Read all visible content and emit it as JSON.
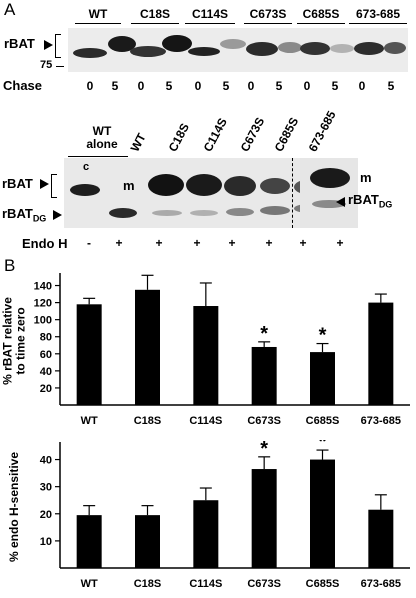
{
  "panel_a": {
    "letter": "A",
    "top_blot": {
      "row_label": "rBAT",
      "mw_marker": "75",
      "chase_label": "Chase",
      "groups": [
        {
          "name": "WT",
          "chase": [
            "0",
            "5"
          ]
        },
        {
          "name": "C18S",
          "chase": [
            "0",
            "5"
          ]
        },
        {
          "name": "C114S",
          "chase": [
            "0",
            "5"
          ]
        },
        {
          "name": "C673S",
          "chase": [
            "0",
            "5"
          ]
        },
        {
          "name": "C685S",
          "chase": [
            "0",
            "5"
          ]
        },
        {
          "name": "673-685",
          "chase": [
            "0",
            "5"
          ]
        }
      ]
    },
    "bottom_blot": {
      "wt_alone_label": "WT alone",
      "lane_labels": [
        "WT",
        "C18S",
        "C114S",
        "C673S",
        "C685S",
        "673-685"
      ],
      "row_label_top": "rBAT",
      "row_label_dg": "rBAT",
      "dg_subscript": "DG",
      "band_c": "c",
      "band_m_left": "m",
      "band_m_right": "m",
      "right_label": "rBAT",
      "endo_label": "Endo H",
      "endo_signs": [
        "-",
        "+",
        "+",
        "+",
        "+",
        "+",
        "+",
        "+"
      ]
    }
  },
  "panel_b": {
    "letter": "B",
    "chart_data": [
      {
        "type": "bar",
        "ylabel": "% rBAT relative to time zero",
        "ylabel_lines": [
          "% rBAT relative",
          "to time zero"
        ],
        "ylim": [
          0,
          150
        ],
        "yticks": [
          20,
          40,
          60,
          80,
          100,
          120,
          140
        ],
        "categories": [
          "WT",
          "C18S",
          "C114S",
          "C673S",
          "C685S",
          "673-685"
        ],
        "values": [
          118,
          135,
          116,
          68,
          62,
          120
        ],
        "errors": [
          7,
          17,
          27,
          6,
          10,
          10
        ],
        "significant": [
          false,
          false,
          false,
          true,
          true,
          false
        ],
        "sig_marker": "*"
      },
      {
        "type": "bar",
        "ylabel": "% endo H-sensitive",
        "ylim": [
          0,
          45
        ],
        "yticks": [
          10,
          20,
          30,
          40
        ],
        "categories": [
          "WT",
          "C18S",
          "C114S",
          "C673S",
          "C685S",
          "673-685"
        ],
        "values": [
          19.5,
          19.5,
          25,
          36.5,
          40,
          21.5
        ],
        "errors": [
          3.5,
          3.5,
          4.5,
          4.5,
          3.5,
          5.5
        ],
        "significant": [
          false,
          false,
          false,
          true,
          true,
          false
        ],
        "sig_marker": "*"
      }
    ]
  }
}
